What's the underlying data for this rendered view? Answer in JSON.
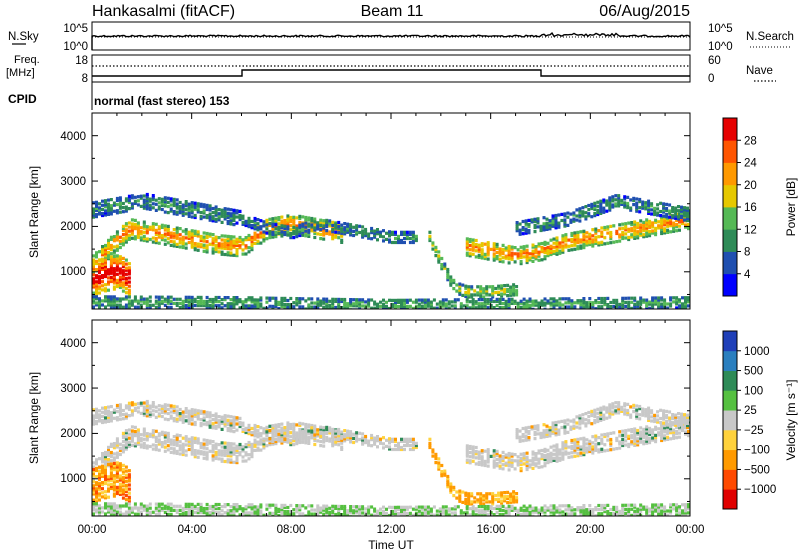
{
  "header": {
    "station": "Hankasalmi (fitACF)",
    "beam": "Beam 11",
    "date": "06/Aug/2015"
  },
  "top_panel": {
    "left_label": "N.Sky",
    "left_ticks": [
      "10^5",
      "10^0"
    ],
    "right_ticks": [
      "10^5",
      "10^0"
    ],
    "right_label": "N.Search"
  },
  "freq_panel": {
    "left_label_top": "Freq.",
    "left_label_bottom": "[MHz]",
    "left_ticks": [
      "18",
      "8"
    ],
    "right_ticks": [
      "60",
      "0"
    ],
    "right_label": "Nave"
  },
  "cpid": {
    "label": "CPID",
    "text": "normal (fast stereo) 153"
  },
  "axes": {
    "ylabel": "Slant Range [km]",
    "yticks": [
      "1000",
      "2000",
      "3000",
      "4000"
    ],
    "xlabel": "Time UT",
    "xticks": [
      "00:00",
      "04:00",
      "08:00",
      "12:00",
      "16:00",
      "20:00",
      "00:00"
    ]
  },
  "power_scale": {
    "label": "Power [dB]",
    "ticks": [
      "4",
      "8",
      "12",
      "16",
      "20",
      "24",
      "28"
    ],
    "colors": [
      "#0000ff",
      "#1f4fb0",
      "#2e8b57",
      "#55b955",
      "#e6c800",
      "#ff9900",
      "#ff5500",
      "#e60000"
    ]
  },
  "velocity_scale": {
    "label": "Velocity [m s⁻¹]",
    "ticks": [
      "1000",
      "500",
      "100",
      "25",
      "−25",
      "−100",
      "−500",
      "−1000"
    ],
    "colors": [
      "#1f3fb8",
      "#2a7fbf",
      "#2e8b57",
      "#55c040",
      "#c8c8c8",
      "#ffd23c",
      "#ff9a00",
      "#ff4a00",
      "#e00000"
    ]
  },
  "chart_data": [
    {
      "type": "heatmap",
      "title": "Power [dB]",
      "xlabel": "Time UT",
      "ylabel": "Slant Range [km]",
      "x_range_hours": [
        0,
        24
      ],
      "ylim": [
        180,
        4500
      ],
      "value_range": [
        0,
        30
      ],
      "features": [
        {
          "desc": "echo band",
          "t": [
            0,
            2,
            4,
            6,
            8,
            10
          ],
          "range": [
            1200,
            2000,
            1700,
            1550,
            2000,
            1900
          ],
          "power": 22
        },
        {
          "desc": "near-range echoes",
          "t": [
            0,
            1.5
          ],
          "range": [
            950,
            1000
          ],
          "power": 28
        },
        {
          "desc": "upper echoes",
          "t": [
            0,
            2,
            4
          ],
          "range": [
            2300,
            2600,
            2400
          ],
          "power": 8
        },
        {
          "desc": "evening band",
          "t": [
            18,
            20,
            22,
            24
          ],
          "range": [
            1400,
            1700,
            1900,
            2200
          ],
          "power": 20
        }
      ]
    },
    {
      "type": "heatmap",
      "title": "Velocity [m s⁻¹]",
      "xlabel": "Time UT",
      "ylabel": "Slant Range [km]",
      "x_range_hours": [
        0,
        24
      ],
      "ylim": [
        180,
        4500
      ],
      "value_range": [
        -1000,
        1000
      ]
    }
  ]
}
